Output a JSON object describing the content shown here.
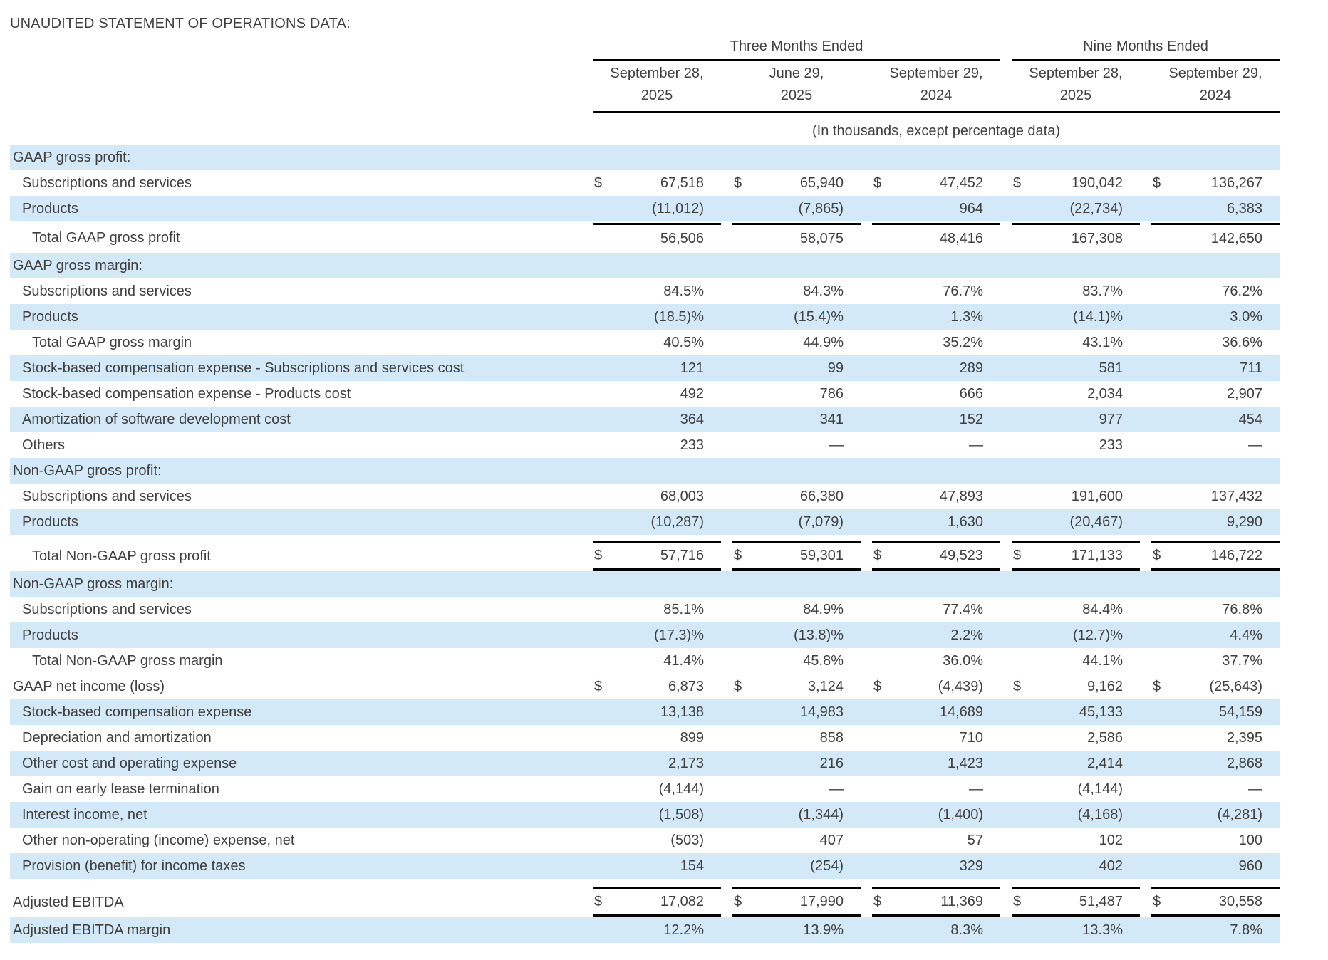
{
  "title": "UNAUDITED STATEMENT OF OPERATIONS DATA:",
  "table": {
    "currency_symbol": "$",
    "units_note": "(In thousands, except percentage data)",
    "period_groups": [
      {
        "label": "Three Months Ended",
        "span": 3
      },
      {
        "label": "Nine Months Ended",
        "span": 2
      }
    ],
    "columns": [
      {
        "line1": "September 28,",
        "line2": "2025"
      },
      {
        "line1": "June 29,",
        "line2": "2025"
      },
      {
        "line1": "September 29,",
        "line2": "2024"
      },
      {
        "line1": "September 28,",
        "line2": "2025"
      },
      {
        "line1": "September 29,",
        "line2": "2024"
      }
    ],
    "colors": {
      "stripe": "#d3e9f7",
      "text": "#3f3f3f",
      "line": "#000000"
    },
    "rows": [
      {
        "label": "GAAP gross profit:",
        "indent": 0,
        "shaded": true,
        "section": true,
        "values": [
          "",
          "",
          "",
          "",
          ""
        ]
      },
      {
        "label": "Subscriptions and services",
        "indent": 1,
        "shaded": false,
        "dollar": true,
        "values": [
          "67,518",
          "65,940",
          "47,452",
          "190,042",
          "136,267"
        ]
      },
      {
        "label": "Products",
        "indent": 1,
        "shaded": true,
        "values": [
          "(11,012)",
          "(7,865)",
          "964",
          "(22,734)",
          "6,383"
        ]
      },
      {
        "label": "Total GAAP gross profit",
        "indent": 2,
        "shaded": false,
        "top_line": true,
        "gap_before": 2,
        "values": [
          "56,506",
          "58,075",
          "48,416",
          "167,308",
          "142,650"
        ]
      },
      {
        "label": "GAAP gross margin:",
        "indent": 0,
        "shaded": true,
        "section": true,
        "values": [
          "",
          "",
          "",
          "",
          ""
        ]
      },
      {
        "label": "Subscriptions and services",
        "indent": 1,
        "shaded": false,
        "values": [
          "84.5%",
          "84.3%",
          "76.7%",
          "83.7%",
          "76.2%"
        ]
      },
      {
        "label": "Products",
        "indent": 1,
        "shaded": true,
        "values": [
          "(18.5)%",
          "(15.4)%",
          "1.3%",
          "(14.1)%",
          "3.0%"
        ]
      },
      {
        "label": "Total GAAP gross margin",
        "indent": 2,
        "shaded": false,
        "values": [
          "40.5%",
          "44.9%",
          "35.2%",
          "43.1%",
          "36.6%"
        ]
      },
      {
        "label": "Stock-based compensation expense - Subscriptions and services cost",
        "indent": 1,
        "shaded": true,
        "values": [
          "121",
          "99",
          "289",
          "581",
          "711"
        ]
      },
      {
        "label": "Stock-based compensation expense - Products cost",
        "indent": 1,
        "shaded": false,
        "values": [
          "492",
          "786",
          "666",
          "2,034",
          "2,907"
        ]
      },
      {
        "label": "Amortization of software development cost",
        "indent": 1,
        "shaded": true,
        "values": [
          "364",
          "341",
          "152",
          "977",
          "454"
        ]
      },
      {
        "label": "Others",
        "indent": 1,
        "shaded": false,
        "values": [
          "233",
          "—",
          "—",
          "233",
          "—"
        ]
      },
      {
        "label": "Non-GAAP gross profit:",
        "indent": 0,
        "shaded": true,
        "section": true,
        "values": [
          "",
          "",
          "",
          "",
          ""
        ]
      },
      {
        "label": "Subscriptions and services",
        "indent": 1,
        "shaded": false,
        "values": [
          "68,003",
          "66,380",
          "47,893",
          "191,600",
          "137,432"
        ]
      },
      {
        "label": "Products",
        "indent": 1,
        "shaded": true,
        "values": [
          "(10,287)",
          "(7,079)",
          "1,630",
          "(20,467)",
          "9,290"
        ]
      },
      {
        "label": "Total Non-GAAP gross profit",
        "indent": 2,
        "shaded": false,
        "dollar": true,
        "top_line": true,
        "bottom_line": true,
        "gap_before": 9,
        "values": [
          "57,716",
          "59,301",
          "49,523",
          "171,133",
          "146,722"
        ]
      },
      {
        "label": "Non-GAAP gross margin:",
        "indent": 0,
        "shaded": true,
        "section": true,
        "values": [
          "",
          "",
          "",
          "",
          ""
        ]
      },
      {
        "label": "Subscriptions and services",
        "indent": 1,
        "shaded": false,
        "values": [
          "85.1%",
          "84.9%",
          "77.4%",
          "84.4%",
          "76.8%"
        ]
      },
      {
        "label": "Products",
        "indent": 1,
        "shaded": true,
        "values": [
          "(17.3)%",
          "(13.8)%",
          "2.2%",
          "(12.7)%",
          "4.4%"
        ]
      },
      {
        "label": "Total Non-GAAP gross margin",
        "indent": 2,
        "shaded": false,
        "values": [
          "41.4%",
          "45.8%",
          "36.0%",
          "44.1%",
          "37.7%"
        ]
      },
      {
        "label": "GAAP net income (loss)",
        "indent": 0,
        "shaded": false,
        "dollar": true,
        "values": [
          "6,873",
          "3,124",
          "(4,439)",
          "9,162",
          "(25,643)"
        ]
      },
      {
        "label": "Stock-based compensation expense",
        "indent": 1,
        "shaded": true,
        "values": [
          "13,138",
          "14,983",
          "14,689",
          "45,133",
          "54,159"
        ]
      },
      {
        "label": "Depreciation and amortization",
        "indent": 1,
        "shaded": false,
        "values": [
          "899",
          "858",
          "710",
          "2,586",
          "2,395"
        ]
      },
      {
        "label": "Other cost and operating expense",
        "indent": 1,
        "shaded": true,
        "values": [
          "2,173",
          "216",
          "1,423",
          "2,414",
          "2,868"
        ]
      },
      {
        "label": "Gain on early lease termination",
        "indent": 1,
        "shaded": false,
        "values": [
          "(4,144)",
          "—",
          "—",
          "(4,144)",
          "—"
        ]
      },
      {
        "label": "Interest income, net",
        "indent": 1,
        "shaded": true,
        "values": [
          "(1,508)",
          "(1,344)",
          "(1,400)",
          "(4,168)",
          "(4,281)"
        ]
      },
      {
        "label": "Other non-operating (income) expense, net",
        "indent": 1,
        "shaded": false,
        "values": [
          "(503)",
          "407",
          "57",
          "102",
          "100"
        ]
      },
      {
        "label": "Provision (benefit) for income taxes",
        "indent": 1,
        "shaded": true,
        "values": [
          "154",
          "(254)",
          "329",
          "402",
          "960"
        ]
      },
      {
        "label": "Adjusted EBITDA",
        "indent": 0,
        "shaded": false,
        "dollar": true,
        "top_line": true,
        "bottom_line": true,
        "gap_before": 12,
        "values": [
          "17,082",
          "17,990",
          "11,369",
          "51,487",
          "30,558"
        ]
      },
      {
        "label": "Adjusted EBITDA margin",
        "indent": 0,
        "shaded": true,
        "values": [
          "12.2%",
          "13.9%",
          "8.3%",
          "13.3%",
          "7.8%"
        ]
      }
    ]
  }
}
